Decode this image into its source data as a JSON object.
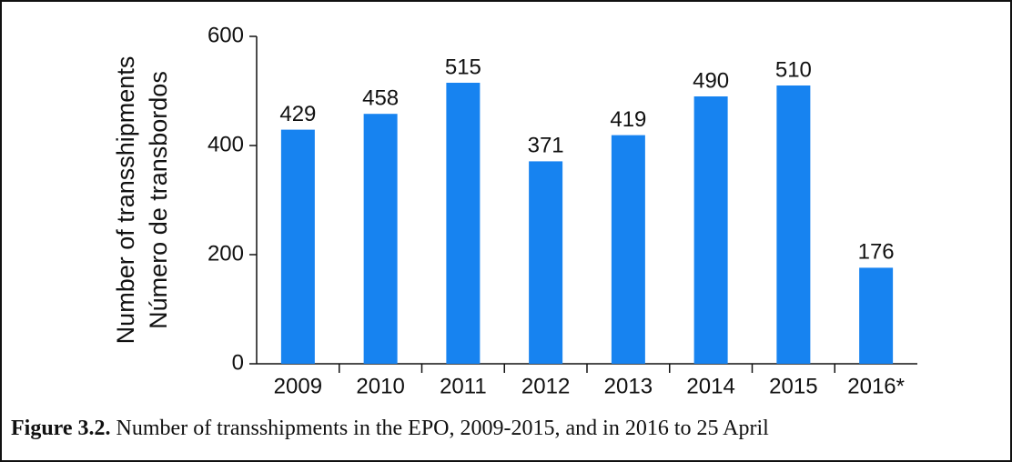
{
  "chart_data": {
    "type": "bar",
    "ylabel": [
      "Number of transshipments",
      "Número de transbordos"
    ],
    "categories": [
      "2009",
      "2010",
      "2011",
      "2012",
      "2013",
      "2014",
      "2015",
      "2016*"
    ],
    "values": [
      429,
      458,
      515,
      371,
      419,
      490,
      510,
      176
    ],
    "color": "#1783f0",
    "ylim": [
      0,
      600
    ],
    "yticks": [
      0,
      200,
      400,
      600
    ],
    "grid": false,
    "caption": {
      "label": "Figure 3.2.",
      "text": "Number of transshipments in the EPO, 2009-2015, and in 2016 to 25 April"
    }
  }
}
